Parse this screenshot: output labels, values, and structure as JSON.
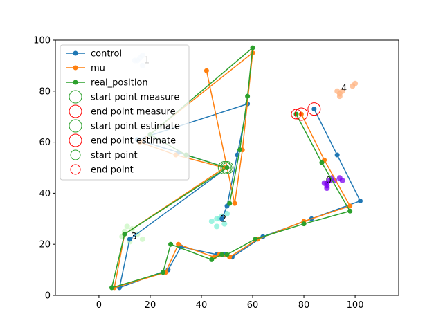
{
  "chart_data": {
    "type": "line",
    "xlim": [
      -17,
      117
    ],
    "ylim": [
      0,
      100
    ],
    "x_ticks": [
      0,
      20,
      40,
      60,
      80,
      100
    ],
    "y_ticks": [
      0,
      20,
      40,
      60,
      80,
      100
    ],
    "grid": false,
    "legend_position": "upper-left",
    "series": [
      {
        "name": "control",
        "color": "#1f77b4",
        "x": [
          84,
          93,
          102,
          83,
          64,
          52,
          49,
          46,
          32,
          27,
          8,
          12,
          50,
          31,
          15,
          58,
          54,
          50,
          48
        ],
        "y": [
          73,
          55,
          37,
          30,
          23,
          15,
          16,
          16,
          19,
          10,
          3,
          22,
          50,
          56,
          61,
          75,
          55,
          35,
          30
        ]
      },
      {
        "name": "mu",
        "color": "#ff7f0e",
        "x": [
          79,
          88,
          98,
          80,
          62,
          51,
          47,
          45,
          31,
          26,
          6,
          10,
          49,
          30,
          16,
          60,
          56,
          53,
          42
        ],
        "y": [
          71,
          53,
          35,
          29,
          22,
          15,
          16,
          15,
          20,
          9,
          3,
          24,
          50,
          55,
          60,
          95,
          57,
          36,
          88
        ]
      },
      {
        "name": "real_position",
        "color": "#2ca02c",
        "x": [
          77,
          87,
          98,
          80,
          61,
          50,
          48,
          44,
          28,
          25,
          5,
          10,
          50,
          34,
          20,
          60,
          58,
          55,
          51
        ],
        "y": [
          71,
          52,
          33,
          28,
          22,
          16,
          16,
          14,
          20,
          9,
          3,
          24,
          50,
          55,
          63,
          97,
          78,
          57,
          36
        ]
      }
    ],
    "markers": [
      {
        "name": "start point measure",
        "color": "#2ca02c",
        "size": "large",
        "x": 50,
        "y": 50
      },
      {
        "name": "end point measure",
        "color": "#ff0000",
        "size": "large",
        "x": 84,
        "y": 73
      },
      {
        "name": "start point estimate",
        "color": "#2ca02c",
        "size": "large",
        "x": 49,
        "y": 50
      },
      {
        "name": "end point estimate",
        "color": "#ff0000",
        "size": "large",
        "x": 79,
        "y": 71
      },
      {
        "name": "start point",
        "color": "#2ca02c",
        "size": "small",
        "x": 50,
        "y": 50
      },
      {
        "name": "end point",
        "color": "#ff0000",
        "size": "small",
        "x": 77,
        "y": 71
      }
    ],
    "clusters": [
      {
        "label": "0",
        "color": "#7b00f0",
        "label_xy": [
          88,
          45
        ],
        "points": [
          [
            88,
            44
          ],
          [
            89,
            44
          ],
          [
            90,
            45
          ],
          [
            89,
            42
          ],
          [
            91,
            46
          ],
          [
            92,
            45
          ],
          [
            94,
            46
          ],
          [
            95,
            45
          ],
          [
            89,
            43
          ]
        ]
      },
      {
        "label": "1",
        "color": "#cfe1f5",
        "label_xy": [
          17,
          92
        ],
        "points": [
          [
            14,
            92
          ],
          [
            16,
            93
          ],
          [
            17,
            94
          ],
          [
            17,
            90
          ],
          [
            15,
            92
          ]
        ]
      },
      {
        "label": "2",
        "color": "#7ff0d8",
        "label_xy": [
          47,
          30
        ],
        "points": [
          [
            44,
            29
          ],
          [
            46,
            27
          ],
          [
            47,
            30
          ],
          [
            48,
            31
          ],
          [
            50,
            32
          ],
          [
            49,
            28
          ],
          [
            46,
            30
          ]
        ]
      },
      {
        "label": "3",
        "color": "#c8f5c0",
        "label_xy": [
          12,
          23
        ],
        "points": [
          [
            10,
            25
          ],
          [
            11,
            27
          ],
          [
            13,
            26
          ],
          [
            12,
            21
          ],
          [
            15,
            24
          ],
          [
            17,
            22
          ],
          [
            9,
            23
          ]
        ]
      },
      {
        "label": "4",
        "color": "#ffb27f",
        "label_xy": [
          94,
          81
        ],
        "points": [
          [
            93,
            80
          ],
          [
            94,
            79
          ],
          [
            94,
            78
          ],
          [
            99,
            82
          ],
          [
            100,
            83
          ],
          [
            95,
            80
          ]
        ]
      }
    ]
  }
}
